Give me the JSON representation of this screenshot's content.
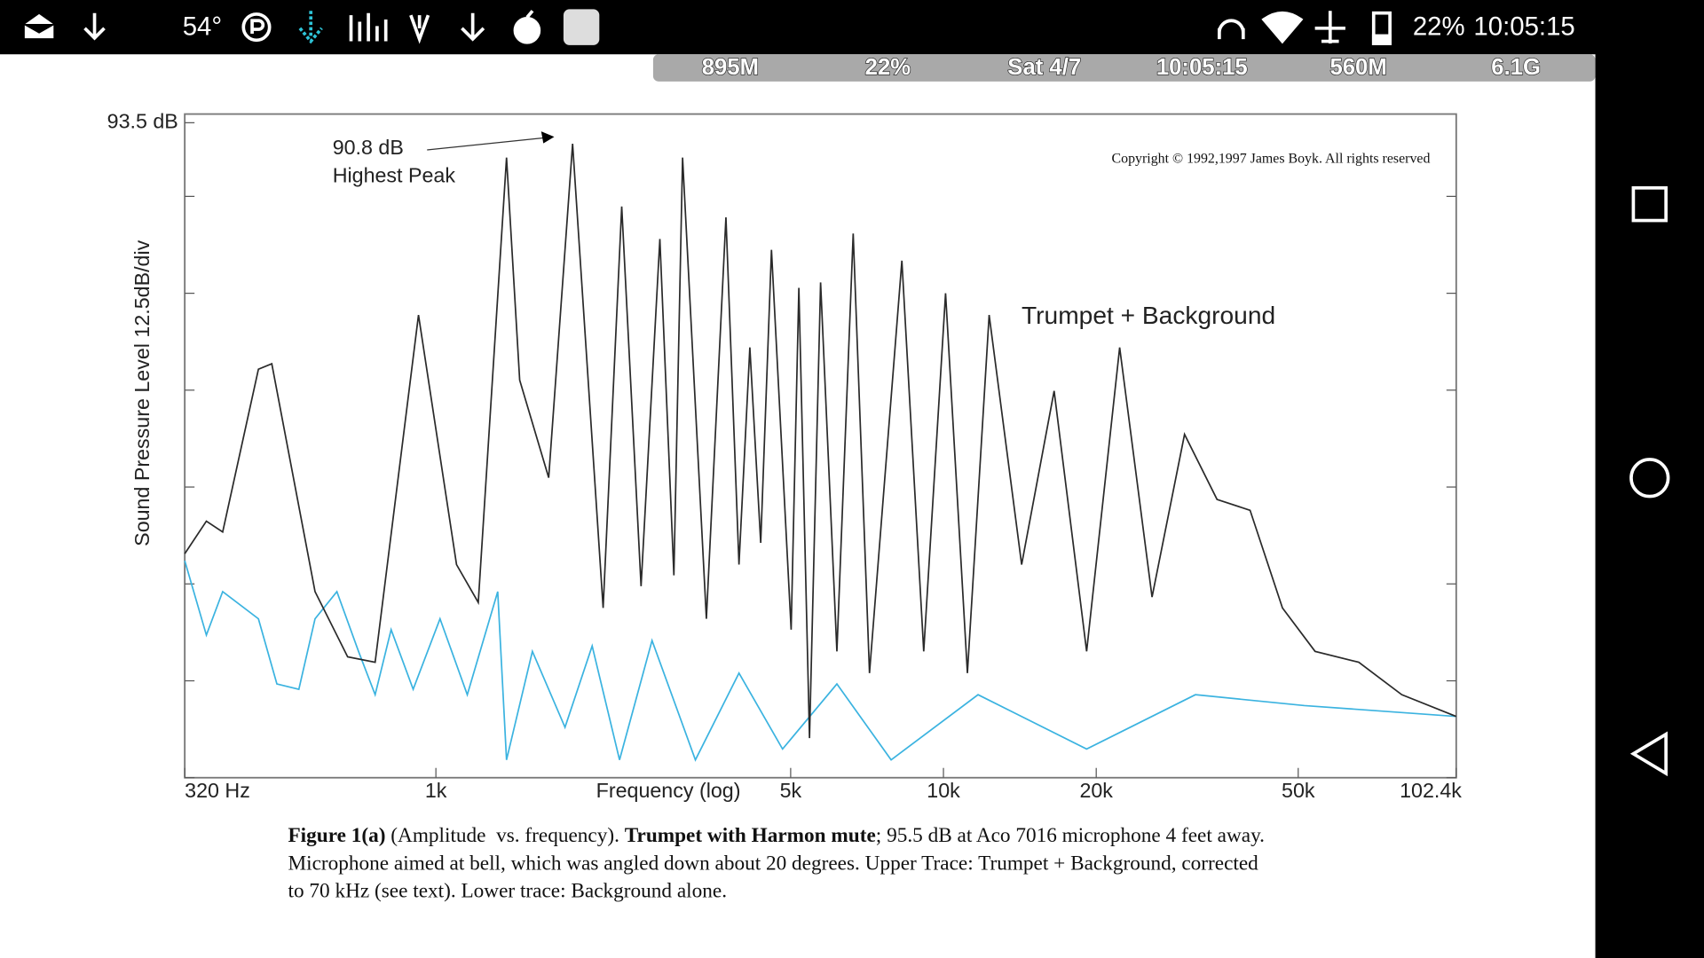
{
  "status_bar": {
    "temperature": "54°",
    "battery": "22%",
    "time": "10:05:15"
  },
  "overlay_bar": {
    "items": [
      "895M",
      "22%",
      "Sat 4/7",
      "10:05:15",
      "560M",
      "6.1G"
    ]
  },
  "chart_data": {
    "type": "line",
    "ylabel": "Sound Pressure Level  12.5dB/div",
    "xlabel": "Frequency (log)",
    "annotations": {
      "peak_value": "90.8 dB",
      "peak_text": "Highest Peak",
      "copyright": "Copyright © 1992,1997 James Boyk. All rights reserved"
    },
    "xlog": true,
    "xlim": [
      320,
      102400
    ],
    "xticks": [
      {
        "value": 320,
        "label": "320 Hz"
      },
      {
        "value": 1000,
        "label": "1k"
      },
      {
        "value": 5000,
        "label": "5k"
      },
      {
        "value": 10000,
        "label": "10k"
      },
      {
        "value": 20000,
        "label": "20k"
      },
      {
        "value": 50000,
        "label": "50k"
      },
      {
        "value": 102400,
        "label": "102.4k"
      }
    ],
    "ylim": [
      9,
      93.5
    ],
    "yticks": [
      {
        "value": 93.5,
        "label": "93.5 dB"
      }
    ],
    "minor_yticks": [
      84,
      71.5,
      59,
      46.5,
      34,
      21.5,
      9
    ],
    "series": [
      {
        "name": "Trumpet + Background",
        "color": "#2a2a2a",
        "x": [
          320,
          353,
          380,
          447,
          475,
          578,
          670,
          759,
          924,
          1098,
          1212,
          1378,
          1462,
          1668,
          1859,
          2135,
          2323,
          2537,
          2762,
          2944,
          3062,
          3412,
          3728,
          3955,
          4154,
          4365,
          4583,
          5011,
          5190,
          5447,
          5728,
          6167,
          6640,
          7149,
          8283,
          9145,
          10096,
          11146,
          12306,
          14259,
          16524,
          19149,
          22240,
          25760,
          29856,
          34592,
          40192,
          46560,
          53984,
          65792,
          80000,
          102400
        ],
        "values": [
          37.9,
          42.1,
          40.7,
          61.7,
          62.4,
          33.0,
          24.6,
          23.9,
          68.7,
          36.5,
          31.6,
          89.0,
          60.3,
          47.7,
          90.8,
          30.9,
          82.7,
          33.7,
          78.5,
          35.1,
          89.0,
          29.5,
          81.3,
          36.5,
          64.5,
          39.3,
          77.1,
          28.1,
          72.2,
          14.1,
          72.9,
          25.3,
          79.2,
          22.5,
          75.7,
          25.3,
          71.5,
          22.5,
          68.7,
          36.5,
          58.9,
          25.3,
          64.5,
          32.3,
          53.3,
          44.9,
          43.5,
          30.9,
          25.3,
          23.9,
          19.7,
          16.9
        ]
      },
      {
        "color": "#3bb3e0",
        "x": [
          320,
          353,
          380,
          447,
          486,
          537,
          578,
          638,
          704,
          759,
          816,
          902,
          1019,
          1153,
          1324,
          1378,
          1549,
          1796,
          2032,
          2301,
          2666,
          3245,
          3955,
          4819,
          6167,
          7888,
          11699,
          19149,
          31360,
          51424,
          102400
        ],
        "values": [
          37.0,
          27.4,
          33.0,
          29.5,
          21.1,
          20.4,
          29.5,
          33.0,
          25.3,
          19.7,
          28.1,
          20.4,
          29.5,
          19.7,
          33.0,
          11.3,
          25.3,
          15.5,
          26.0,
          11.3,
          26.7,
          11.3,
          22.5,
          12.7,
          21.1,
          11.3,
          19.7,
          12.7,
          19.7,
          18.3,
          16.9
        ]
      }
    ]
  },
  "caption": {
    "lines": [
      [
        {
          "text": "Figure 1(a)",
          "bold": true
        },
        {
          "text": " (Amplitude  vs. frequency). ",
          "bold": false
        },
        {
          "text": "Trumpet with Harmon mute",
          "bold": true
        },
        {
          "text": "; 95.5 dB at Aco 7016 microphone 4 feet away.",
          "bold": false
        }
      ],
      [
        {
          "text": "Microphone aimed at bell, which was angled down about 20 degrees. Upper Trace: Trumpet + Background, corrected",
          "bold": false
        }
      ],
      [
        {
          "text": "to 70 kHz (see text). Lower trace: Background alone.",
          "bold": false
        }
      ]
    ]
  }
}
